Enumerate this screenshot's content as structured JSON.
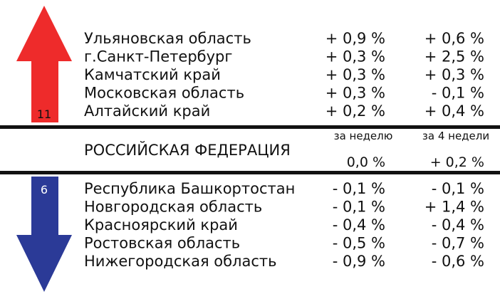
{
  "up": {
    "count": "11",
    "rows": [
      [
        "Ульяновская область",
        "+ 0,9 %",
        "+ 0,6 %"
      ],
      [
        "г.Санкт-Петербург",
        "+ 0,3 %",
        "+ 2,5 %"
      ],
      [
        "Камчатский край",
        "+ 0,3 %",
        "+ 0,3 %"
      ],
      [
        "Московская область",
        "+ 0,3 %",
        "- 0,1 %"
      ],
      [
        "Алтайский край",
        "+ 0,2 %",
        "+ 0,4 %"
      ]
    ]
  },
  "federation": {
    "name": "РОССИЙСКАЯ ФЕДЕРАЦИЯ",
    "headers": [
      "за неделю",
      "за 4 недели"
    ],
    "values": [
      "0,0 %",
      "+ 0,2 %"
    ]
  },
  "down": {
    "count": "6",
    "rows": [
      [
        "Республика Башкортостан",
        "- 0,1 %",
        "- 0,1 %"
      ],
      [
        "Новгородская область",
        "- 0,1 %",
        "+ 1,4 %"
      ],
      [
        "Красноярский край",
        "- 0,4 %",
        "- 0,4 %"
      ],
      [
        "Ростовская область",
        "- 0,5 %",
        "- 0,7 %"
      ],
      [
        "Нижегородская область",
        "- 0,9 %",
        "- 0,6 %"
      ]
    ]
  }
}
